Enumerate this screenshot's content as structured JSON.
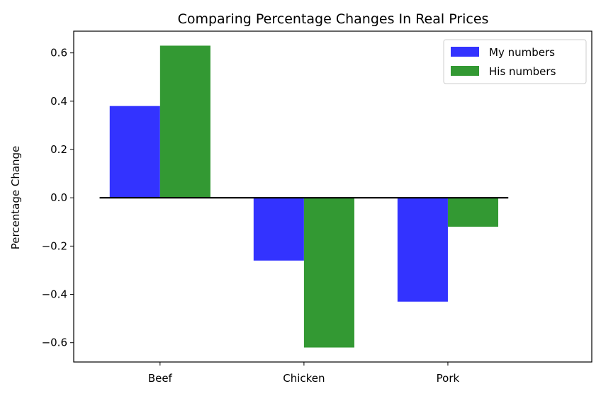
{
  "chart_data": {
    "type": "bar",
    "title": "Comparing Percentage Changes In Real Prices",
    "xlabel": "",
    "ylabel": "Percentage Change",
    "categories": [
      "Beef",
      "Chicken",
      "Pork"
    ],
    "series": [
      {
        "name": "My numbers",
        "values": [
          0.38,
          -0.26,
          -0.43
        ],
        "color": "#3333ff"
      },
      {
        "name": "His numbers",
        "values": [
          0.63,
          -0.62,
          -0.12
        ],
        "color": "#339933"
      }
    ],
    "ylim": [
      -0.68,
      0.69
    ],
    "yticks": [
      -0.6,
      -0.4,
      -0.2,
      0.0,
      0.2,
      0.4,
      0.6
    ],
    "ytick_labels": [
      "−0.6",
      "−0.4",
      "−0.2",
      "0.0",
      "0.2",
      "0.4",
      "0.6"
    ],
    "zero_line": true,
    "grid": false,
    "legend_position": "top-right"
  }
}
